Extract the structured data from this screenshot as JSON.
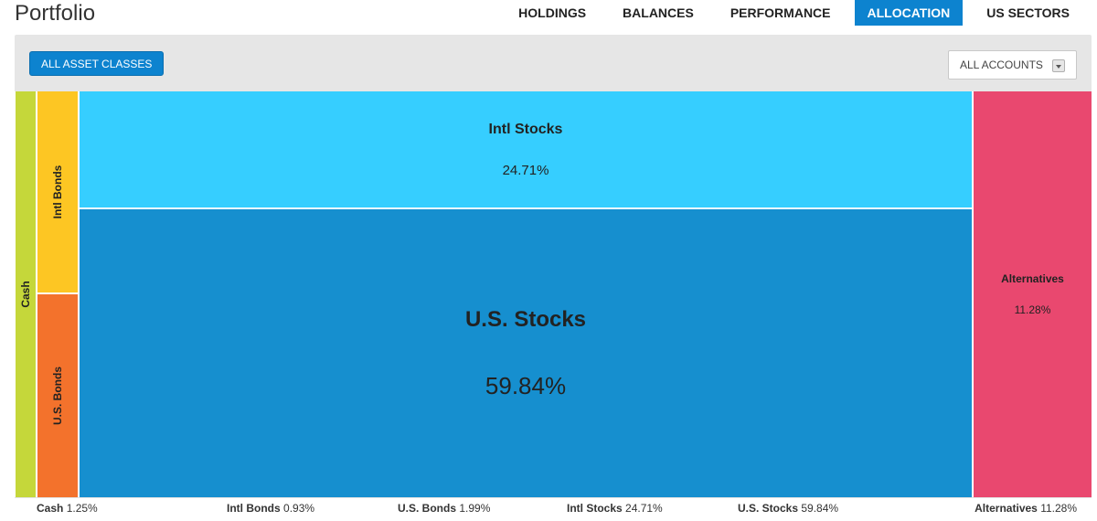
{
  "page": {
    "title": "Portfolio"
  },
  "tabs": [
    {
      "label": "HOLDINGS",
      "active": false
    },
    {
      "label": "BALANCES",
      "active": false
    },
    {
      "label": "PERFORMANCE",
      "active": false
    },
    {
      "label": "ALLOCATION",
      "active": true
    },
    {
      "label": "US SECTORS",
      "active": false
    }
  ],
  "toolbar": {
    "asset_classes_button": "ALL ASSET CLASSES",
    "accounts_select": "ALL ACCOUNTS"
  },
  "colors": {
    "accent": "#0d83cf",
    "cash": "#c5d73a",
    "intl_bonds": "#fdc623",
    "us_bonds": "#f3722c",
    "intl_stocks": "#36ceff",
    "us_stocks": "#168fcf",
    "alternatives": "#e9486f"
  },
  "allocation": {
    "cash": {
      "name": "Cash",
      "pct": "1.25%"
    },
    "intl_bonds": {
      "name": "Intl Bonds",
      "pct": "0.93%"
    },
    "us_bonds": {
      "name": "U.S. Bonds",
      "pct": "1.99%"
    },
    "intl_stocks": {
      "name": "Intl Stocks",
      "pct": "24.71%"
    },
    "us_stocks": {
      "name": "U.S. Stocks",
      "pct": "59.84%"
    },
    "alternatives": {
      "name": "Alternatives",
      "pct": "11.28%"
    }
  }
}
